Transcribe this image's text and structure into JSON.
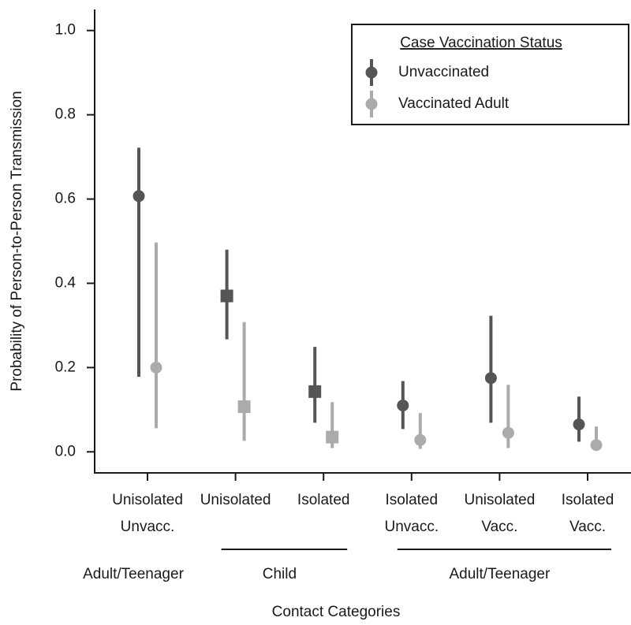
{
  "chart_data": {
    "type": "pointrange",
    "x_label": "Contact Categories",
    "y_label": "Probability of Person-to-Person Transmission",
    "categories": [
      [
        "Unisolated",
        "Unvacc."
      ],
      [
        "Unisolated"
      ],
      [
        "Isolated"
      ],
      [
        "Isolated",
        "Unvacc."
      ],
      [
        "Unisolated",
        "Vacc."
      ],
      [
        "Isolated",
        "Vacc."
      ]
    ],
    "markers": [
      "circle",
      "square",
      "square",
      "circle",
      "circle",
      "circle"
    ],
    "groups": [
      {
        "label": "Adult/Teenager",
        "start": 0,
        "end": 0
      },
      {
        "label": "Child",
        "start": 1,
        "end": 2
      },
      {
        "label": "Adult/Teenager",
        "start": 3,
        "end": 5
      }
    ],
    "legend_title": "Case Vaccination Status",
    "legend_position": "upper right",
    "series": [
      {
        "name": "Unvaccinated",
        "color": "#555555",
        "values": [
          0.607,
          0.37,
          0.143,
          0.11,
          0.175,
          0.065
        ],
        "lower": [
          0.178,
          0.267,
          0.069,
          0.054,
          0.069,
          0.024
        ],
        "upper": [
          0.722,
          0.48,
          0.249,
          0.168,
          0.323,
          0.131
        ]
      },
      {
        "name": "Vaccinated Adult",
        "color": "#ababab",
        "values": [
          0.2,
          0.107,
          0.035,
          0.028,
          0.045,
          0.016
        ],
        "lower": [
          0.056,
          0.026,
          0.009,
          0.007,
          0.009,
          0.006
        ],
        "upper": [
          0.497,
          0.308,
          0.118,
          0.092,
          0.159,
          0.06
        ]
      }
    ],
    "ylim": [
      -0.05,
      1.05
    ],
    "yticks": [
      {
        "value": 0,
        "label": "0.0"
      },
      0.2,
      0.4,
      0.6,
      0.8,
      {
        "value": 1,
        "label": "1.0"
      }
    ]
  }
}
